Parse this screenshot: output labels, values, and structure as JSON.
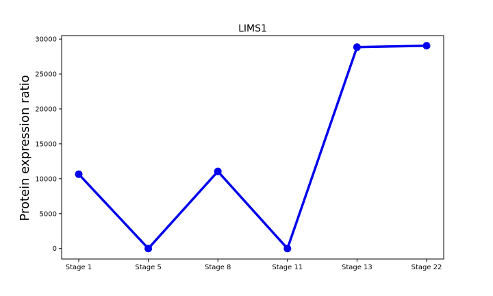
{
  "chart_data": {
    "type": "line",
    "title": "LIMS1",
    "xlabel": "",
    "ylabel": "Protein expression ratio",
    "categories": [
      "Stage 1",
      "Stage 5",
      "Stage 8",
      "Stage 11",
      "Stage 13",
      "Stage 22"
    ],
    "series": [
      {
        "values": [
          10650,
          0,
          11050,
          0,
          28850,
          29050
        ],
        "color": "#0000ee"
      }
    ],
    "yticks": [
      0,
      5000,
      10000,
      15000,
      20000,
      25000,
      30000
    ],
    "ylim": [
      -1500,
      30500
    ],
    "grid": false,
    "legend": "none"
  }
}
